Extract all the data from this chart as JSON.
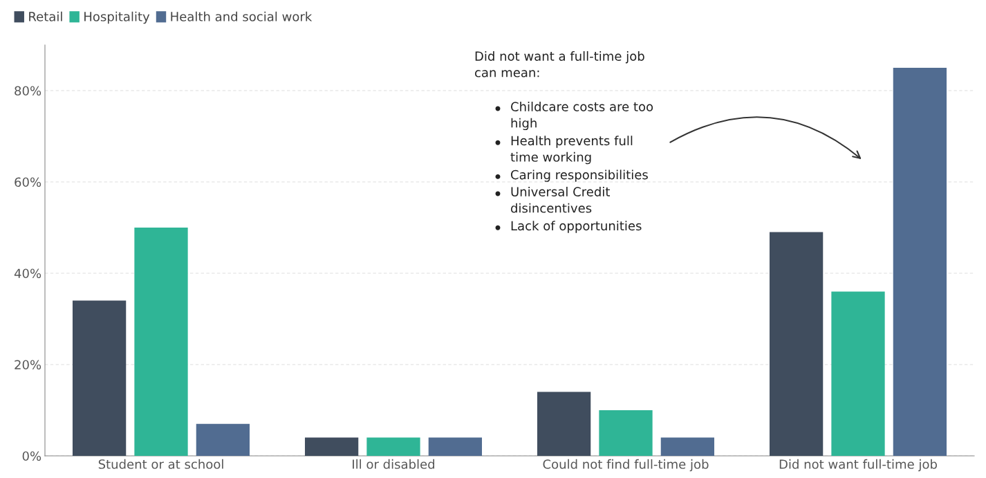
{
  "chart_data": {
    "type": "bar",
    "categories": [
      "Student or at school",
      "Ill or disabled",
      "Could not find full-time job",
      "Did not want full-time job"
    ],
    "series": [
      {
        "name": "Retail",
        "color": "#404d5e",
        "values": [
          34,
          4,
          14,
          49
        ]
      },
      {
        "name": "Hospitality",
        "color": "#2fb596",
        "values": [
          50,
          4,
          10,
          36
        ]
      },
      {
        "name": "Health and social work",
        "color": "#516c91",
        "values": [
          7,
          4,
          4,
          85
        ]
      }
    ],
    "ylim": [
      0,
      90
    ],
    "yticks": [
      {
        "value": 0,
        "label": "0%"
      },
      {
        "value": 20,
        "label": "20%"
      },
      {
        "value": 40,
        "label": "40%"
      },
      {
        "value": 60,
        "label": "60%"
      },
      {
        "value": 80,
        "label": "80%"
      }
    ],
    "grid": "y",
    "legend": "top left",
    "annotations": [
      "Did not want a full-time job\ncan mean:",
      "Childcare costs are too\nhigh",
      "Health prevents full\ntime working",
      "Caring responsibilities",
      "Universal Credit\ndisincentives",
      "Lack of opportunities"
    ]
  }
}
